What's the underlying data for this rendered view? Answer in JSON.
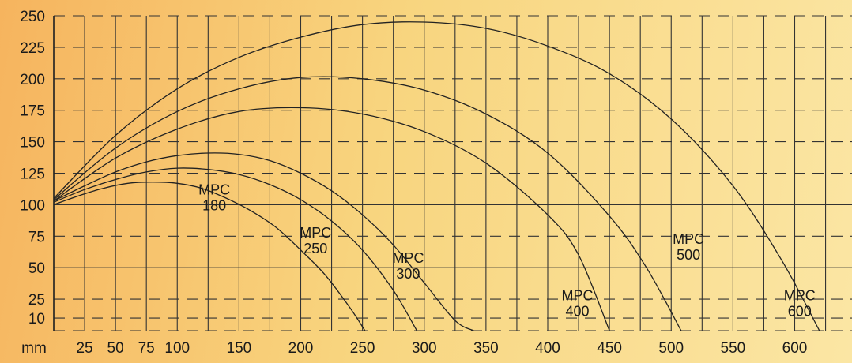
{
  "chart_data": {
    "type": "line",
    "x_unit_label": "mm",
    "x_ticks": [
      25,
      50,
      75,
      100,
      150,
      200,
      250,
      300,
      350,
      400,
      450,
      500,
      550,
      600
    ],
    "y_ticks": [
      10,
      25,
      50,
      75,
      100,
      125,
      150,
      175,
      200,
      225,
      250
    ],
    "xlim": [
      0,
      640
    ],
    "ylim": [
      0,
      250
    ],
    "grid": true,
    "series": [
      {
        "name": "MPC\n180",
        "x": [
          0,
          20,
          40,
          60,
          80,
          100,
          120,
          140,
          160,
          180,
          200,
          220,
          240,
          252
        ],
        "y": [
          100,
          107,
          113,
          117,
          118,
          117,
          113,
          105,
          95,
          82,
          64,
          44,
          18,
          0
        ]
      },
      {
        "name": "MPC\n250",
        "x": [
          0,
          25,
          50,
          75,
          100,
          125,
          150,
          175,
          200,
          225,
          250,
          275,
          294
        ],
        "y": [
          102,
          112,
          120,
          126,
          129,
          128,
          124,
          116,
          104,
          87,
          64,
          32,
          0
        ]
      },
      {
        "name": "MPC\n300",
        "x": [
          0,
          25,
          50,
          75,
          100,
          125,
          150,
          175,
          200,
          225,
          250,
          275,
          300,
          325,
          340
        ],
        "y": [
          103,
          115,
          126,
          134,
          139,
          141,
          140,
          135,
          125,
          111,
          92,
          68,
          38,
          8,
          0
        ]
      },
      {
        "name": "MPC\n400",
        "x": [
          0,
          50,
          100,
          150,
          200,
          250,
          300,
          350,
          400,
          425,
          450
        ],
        "y": [
          103,
          137,
          160,
          174,
          177,
          172,
          158,
          133,
          92,
          60,
          0
        ]
      },
      {
        "name": "MPC\n500",
        "x": [
          0,
          50,
          100,
          150,
          200,
          250,
          300,
          350,
          400,
          450,
          480,
          508
        ],
        "y": [
          104,
          145,
          174,
          192,
          201,
          200,
          191,
          172,
          141,
          91,
          50,
          0
        ]
      },
      {
        "name": "MPC\n600",
        "x": [
          0,
          50,
          100,
          150,
          200,
          250,
          300,
          350,
          400,
          450,
          500,
          550,
          590,
          620
        ],
        "y": [
          105,
          155,
          192,
          217,
          233,
          243,
          245,
          240,
          226,
          204,
          168,
          115,
          55,
          0
        ]
      }
    ],
    "labels": [
      {
        "series": "MPC 180",
        "lines": [
          "MPC",
          "180"
        ],
        "x": 130,
        "y": 108
      },
      {
        "series": "MPC 250",
        "lines": [
          "MPC",
          "250"
        ],
        "x": 212,
        "y": 74
      },
      {
        "series": "MPC 300",
        "lines": [
          "MPC",
          "300"
        ],
        "x": 287,
        "y": 54
      },
      {
        "series": "MPC 400",
        "lines": [
          "MPC",
          "400"
        ],
        "x": 424,
        "y": 24
      },
      {
        "series": "MPC 500",
        "lines": [
          "MPC",
          "500"
        ],
        "x": 514,
        "y": 69
      },
      {
        "series": "MPC 600",
        "lines": [
          "MPC",
          "600"
        ],
        "x": 604,
        "y": 24
      }
    ]
  }
}
